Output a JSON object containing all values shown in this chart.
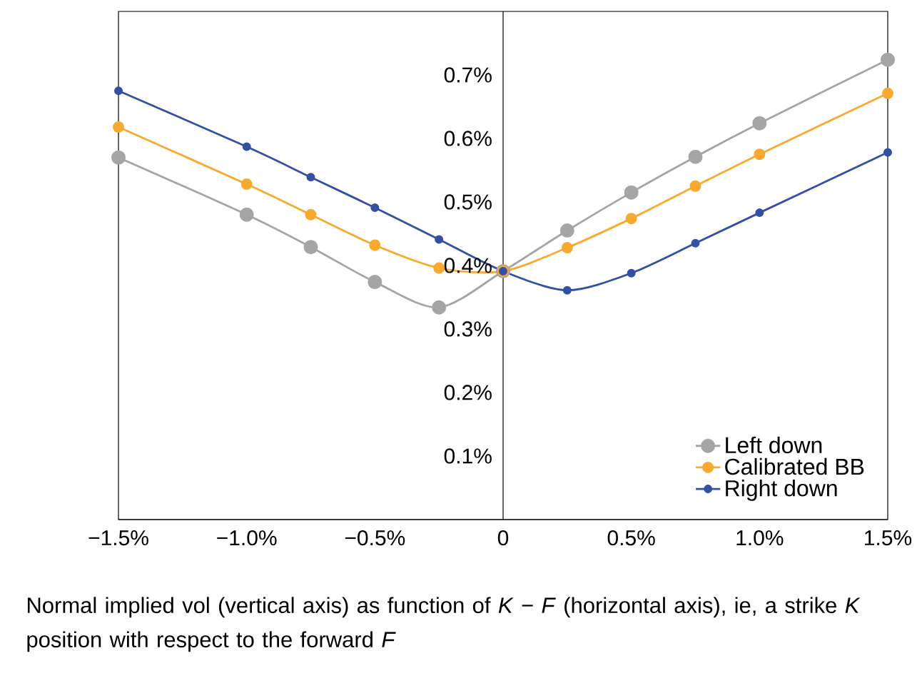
{
  "chart_data": {
    "type": "line",
    "x": [
      -1.5,
      -1.0,
      -0.75,
      -0.5,
      -0.25,
      0,
      0.25,
      0.5,
      0.75,
      1.0,
      1.5
    ],
    "series": [
      {
        "name": "Left down",
        "color": "#a5a5a5",
        "values": [
          0.57,
          0.48,
          0.429,
          0.374,
          0.334,
          0.391,
          0.455,
          0.515,
          0.571,
          0.624,
          0.724
        ]
      },
      {
        "name": "Calibrated BB",
        "color": "#f7a930",
        "values": [
          0.618,
          0.528,
          0.48,
          0.432,
          0.396,
          0.391,
          0.428,
          0.474,
          0.525,
          0.575,
          0.671
        ]
      },
      {
        "name": "Right down",
        "color": "#3450a2",
        "values": [
          0.675,
          0.587,
          0.539,
          0.491,
          0.441,
          0.391,
          0.361,
          0.388,
          0.435,
          0.483,
          0.578
        ]
      }
    ],
    "xlim": [
      -1.5,
      1.5
    ],
    "xticks": [
      {
        "value": -1.5,
        "label": "−1.5%"
      },
      {
        "value": -1.0,
        "label": "−1.0%"
      },
      {
        "value": -0.5,
        "label": "−0.5%"
      },
      0,
      {
        "value": 0.5,
        "label": "0.5%"
      },
      {
        "value": 1.0,
        "label": "1.0%"
      },
      {
        "value": 1.5,
        "label": "1.5%"
      }
    ],
    "ylim": [
      0,
      0.8
    ],
    "yticks": [
      {
        "value": 0.1,
        "label": "0.1%"
      },
      {
        "value": 0.2,
        "label": "0.2%"
      },
      {
        "value": 0.3,
        "label": "0.3%"
      },
      {
        "value": 0.4,
        "label": "0.4%"
      },
      {
        "value": 0.5,
        "label": "0.5%"
      },
      {
        "value": 0.6,
        "label": "0.6%"
      },
      {
        "value": 0.7,
        "label": "0.7%"
      }
    ],
    "grid": false,
    "legend": "bottom right",
    "marker": "circle",
    "line_style": "solid",
    "annotations": [
      "Normal implied vol (vertical axis) as function of *K* − *F* (horizontal axis), ie, a strike *K* position with respect to the forward *F*"
    ]
  }
}
